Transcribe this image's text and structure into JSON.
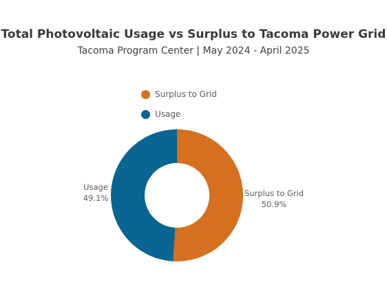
{
  "chart_data": {
    "type": "pie",
    "title": "Total Photovoltaic Usage vs Surplus to Tacoma Power Grid",
    "subtitle": "Tacoma Program Center  |  May 2024 - April 2025",
    "variant": "donut",
    "legend_position": "top",
    "series": [
      {
        "name": "Surplus to Grid",
        "value": 50.9,
        "label": "50.9%",
        "color": "#d4701e"
      },
      {
        "name": "Usage",
        "value": 49.1,
        "label": "49.1%",
        "color": "#0b6592"
      }
    ]
  }
}
